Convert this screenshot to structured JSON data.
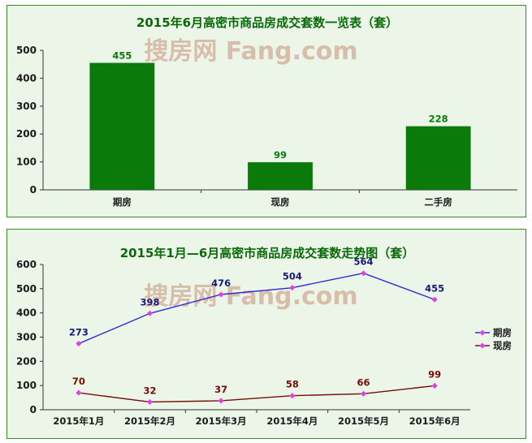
{
  "chart_data": [
    {
      "type": "bar",
      "title": "2015年6月高密市商品房成交套数一览表（套）",
      "categories": [
        "期房",
        "现房",
        "二手房"
      ],
      "values": [
        455,
        99,
        228
      ],
      "ylim": [
        0,
        500
      ],
      "yticks": [
        0,
        100,
        200,
        300,
        400,
        500
      ],
      "xlabel": "",
      "ylabel": "",
      "grid": false,
      "bar_color": "#0a7a0a",
      "label_color": "#0a7a0a"
    },
    {
      "type": "line",
      "title": "2015年1月—6月高密市商品房成交套数走势图（套）",
      "categories": [
        "2015年1月",
        "2015年2月",
        "2015年3月",
        "2015年4月",
        "2015年5月",
        "2015年6月"
      ],
      "series": [
        {
          "name": "期房",
          "values": [
            273,
            398,
            476,
            504,
            564,
            455
          ],
          "color": "#2b2bd6",
          "label_color": "#1a1a7a"
        },
        {
          "name": "现房",
          "values": [
            70,
            32,
            37,
            58,
            66,
            99
          ],
          "color": "#7a0a0a",
          "label_color": "#7a0a0a"
        }
      ],
      "marker_color": "#e040e0",
      "ylim": [
        0,
        600
      ],
      "yticks": [
        0,
        100,
        200,
        300,
        400,
        500,
        600
      ],
      "xlabel": "",
      "ylabel": "",
      "grid": false,
      "legend": "right"
    }
  ],
  "watermark": "搜房网 Fang.com"
}
